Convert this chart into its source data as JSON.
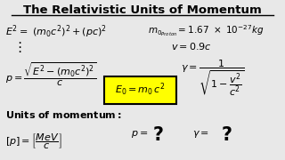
{
  "title": "The Relativistic Units of Momentum",
  "bg_color": "#e8e8e8",
  "text_color": "#000000",
  "highlight_color": "#ffff00",
  "title_fontsize": 9.5,
  "body_fontsize": 8.0
}
